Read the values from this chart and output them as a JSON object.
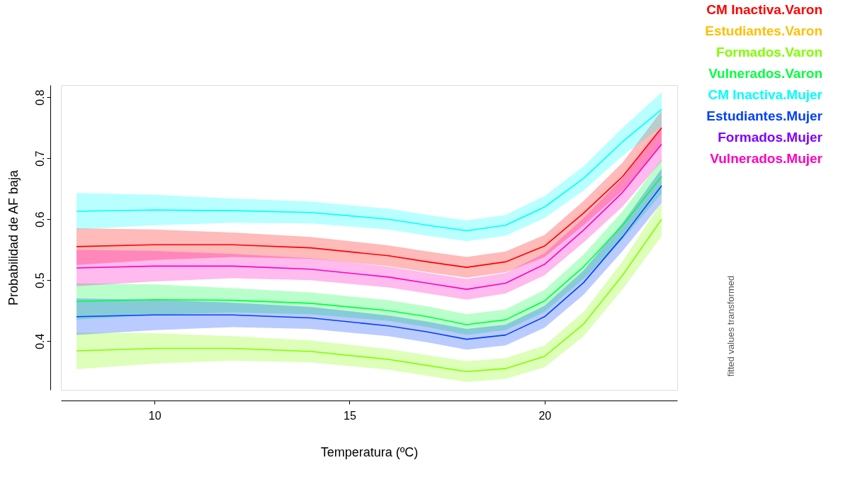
{
  "chart_data": {
    "type": "line",
    "xlabel": "Temperatura (ºC)",
    "ylabel": "Probabilidad de AF baja",
    "x": [
      8,
      10,
      12,
      14,
      16,
      17,
      18,
      19,
      20,
      21,
      22,
      23
    ],
    "xlim": [
      7.6,
      23.4
    ],
    "xticks": [
      10,
      15,
      20
    ],
    "ylim": [
      0.32,
      0.82
    ],
    "yticks": [
      0.4,
      0.5,
      0.6,
      0.7,
      0.8
    ],
    "grid": false,
    "legend": "top right",
    "marker": "none",
    "line_style": "solid",
    "annotations": [
      "fitted values transformed"
    ],
    "series": [
      {
        "name": "CM Inactiva.Varon",
        "color": "#ff0000",
        "values": [
          0.555,
          0.558,
          0.558,
          0.553,
          0.54,
          0.53,
          0.521,
          0.53,
          0.556,
          0.61,
          0.67,
          0.75
        ],
        "lower": [
          0.525,
          0.533,
          0.538,
          0.535,
          0.523,
          0.513,
          0.504,
          0.513,
          0.538,
          0.59,
          0.647,
          0.722
        ],
        "upper": [
          0.585,
          0.583,
          0.578,
          0.571,
          0.557,
          0.547,
          0.538,
          0.547,
          0.574,
          0.63,
          0.693,
          0.778
        ]
      },
      {
        "name": "Estudiantes.Varon",
        "color": "#ffbf00",
        "values": [
          null,
          null,
          null,
          null,
          null,
          null,
          null,
          null,
          null,
          null,
          null,
          null
        ]
      },
      {
        "name": "Formados.Varon",
        "color": "#80ff00",
        "values": [
          0.384,
          0.388,
          0.388,
          0.383,
          0.37,
          0.36,
          0.35,
          0.355,
          0.375,
          0.428,
          0.508,
          0.6
        ],
        "lower": [
          0.354,
          0.363,
          0.368,
          0.365,
          0.353,
          0.343,
          0.333,
          0.338,
          0.357,
          0.408,
          0.485,
          0.572
        ],
        "upper": [
          0.414,
          0.413,
          0.408,
          0.401,
          0.387,
          0.377,
          0.367,
          0.372,
          0.393,
          0.448,
          0.531,
          0.628
        ]
      },
      {
        "name": "Vulnerados.Varon",
        "color": "#00ff40",
        "values": [
          0.465,
          0.468,
          0.467,
          0.462,
          0.45,
          0.44,
          0.427,
          0.435,
          0.466,
          0.522,
          0.59,
          0.67
        ],
        "lower": [
          0.435,
          0.443,
          0.447,
          0.444,
          0.433,
          0.423,
          0.41,
          0.418,
          0.448,
          0.502,
          0.567,
          0.642
        ],
        "upper": [
          0.495,
          0.493,
          0.487,
          0.48,
          0.467,
          0.457,
          0.444,
          0.452,
          0.484,
          0.542,
          0.613,
          0.698
        ]
      },
      {
        "name": "CM Inactiva.Mujer",
        "color": "#00ffff",
        "values": [
          0.613,
          0.615,
          0.614,
          0.611,
          0.6,
          0.59,
          0.581,
          0.59,
          0.62,
          0.667,
          0.727,
          0.78
        ],
        "lower": [
          0.583,
          0.59,
          0.594,
          0.593,
          0.583,
          0.573,
          0.564,
          0.573,
          0.602,
          0.647,
          0.704,
          0.752
        ],
        "upper": [
          0.643,
          0.64,
          0.634,
          0.629,
          0.617,
          0.607,
          0.598,
          0.607,
          0.638,
          0.687,
          0.75,
          0.808
        ]
      },
      {
        "name": "Estudiantes.Mujer",
        "color": "#0040ff",
        "values": [
          0.44,
          0.443,
          0.443,
          0.438,
          0.425,
          0.415,
          0.403,
          0.41,
          0.44,
          0.496,
          0.571,
          0.655
        ],
        "lower": [
          0.41,
          0.418,
          0.423,
          0.42,
          0.408,
          0.398,
          0.386,
          0.393,
          0.422,
          0.476,
          0.548,
          0.627
        ],
        "upper": [
          0.47,
          0.468,
          0.463,
          0.456,
          0.442,
          0.432,
          0.42,
          0.427,
          0.458,
          0.516,
          0.594,
          0.683
        ]
      },
      {
        "name": "Formados.Mujer",
        "color": "#8000ff",
        "values": [
          null,
          null,
          null,
          null,
          null,
          null,
          null,
          null,
          null,
          null,
          null,
          null
        ]
      },
      {
        "name": "Vulnerados.Mujer",
        "color": "#ff00bf",
        "values": [
          0.52,
          0.523,
          0.523,
          0.518,
          0.505,
          0.495,
          0.485,
          0.495,
          0.526,
          0.582,
          0.644,
          0.723
        ],
        "lower": [
          0.49,
          0.498,
          0.503,
          0.5,
          0.488,
          0.478,
          0.468,
          0.478,
          0.508,
          0.562,
          0.621,
          0.695
        ],
        "upper": [
          0.55,
          0.548,
          0.543,
          0.536,
          0.522,
          0.512,
          0.502,
          0.512,
          0.544,
          0.602,
          0.667,
          0.751
        ]
      }
    ]
  }
}
